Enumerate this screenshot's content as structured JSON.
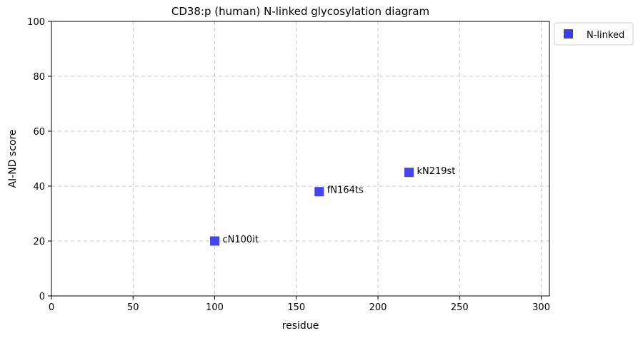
{
  "chart_data": {
    "type": "scatter",
    "title": "CD38:p (human) N-linked glycosylation diagram",
    "xlabel": "residue",
    "ylabel": "AI-ND score",
    "xlim": [
      0,
      305
    ],
    "ylim": [
      0,
      100
    ],
    "xticks": [
      0,
      50,
      100,
      150,
      200,
      250,
      300
    ],
    "yticks": [
      0,
      20,
      40,
      60,
      80,
      100
    ],
    "grid": true,
    "legend_position": "outside-top-right",
    "series": [
      {
        "name": "N-linked",
        "color": "#3b3be8",
        "marker": "square",
        "points": [
          {
            "x": 100,
            "y": 20,
            "label": "cN100it"
          },
          {
            "x": 164,
            "y": 38,
            "label": "fN164ts"
          },
          {
            "x": 219,
            "y": 45,
            "label": "kN219st"
          }
        ]
      }
    ]
  }
}
